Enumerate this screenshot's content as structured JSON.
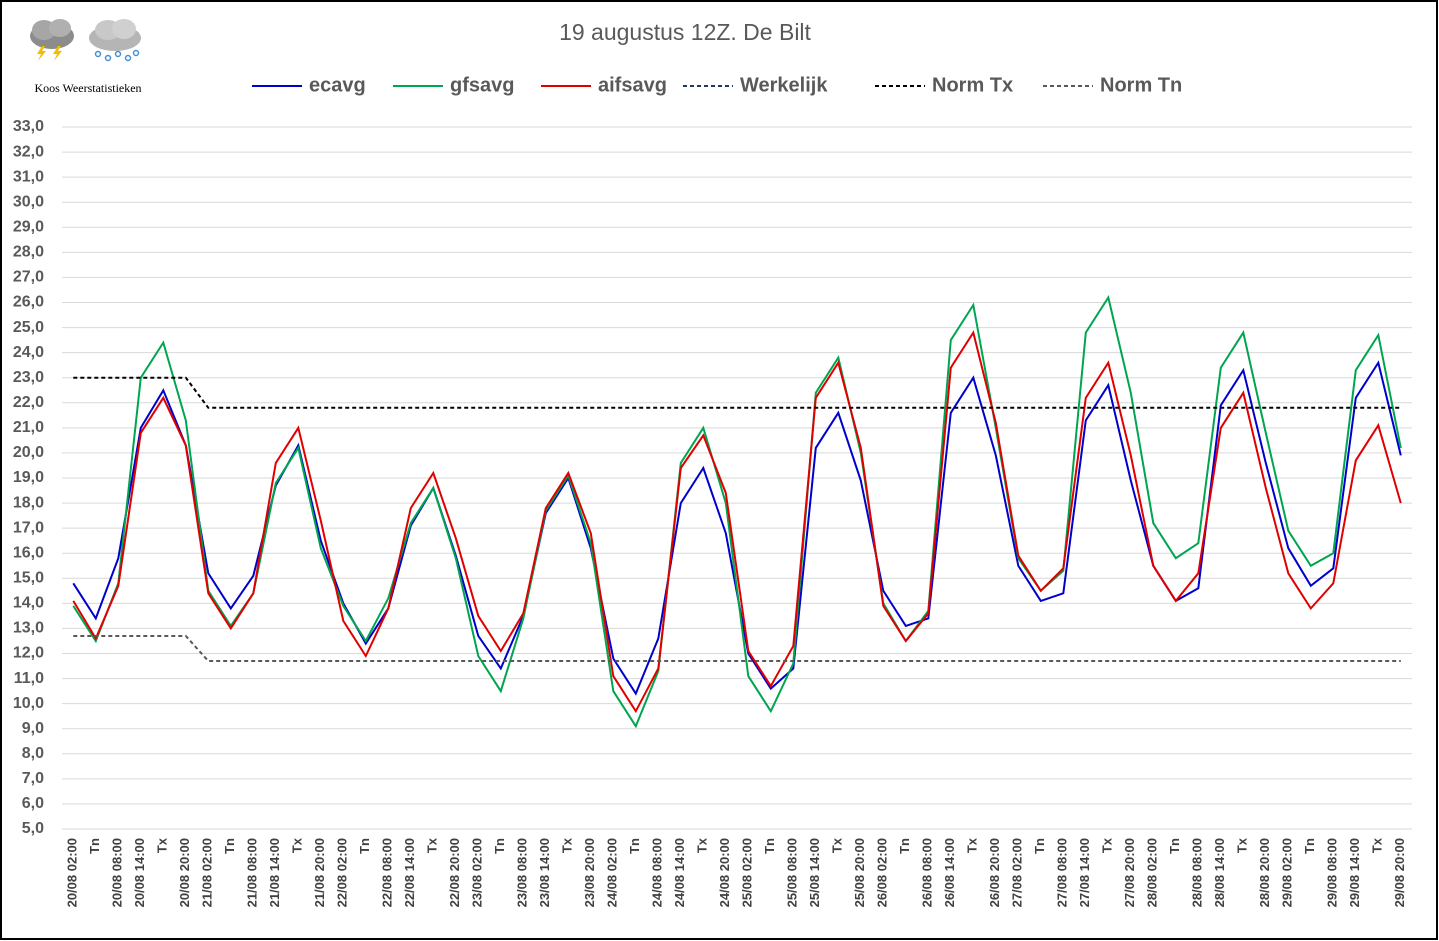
{
  "chart_data": {
    "type": "line",
    "title": "19 augustus 12Z. De Bilt",
    "subtitle": "Koos Weerstatistieken",
    "categories": [
      "20/08 02:00",
      "Tn",
      "20/08 08:00",
      "20/08 14:00",
      "Tx",
      "20/08 20:00",
      "21/08 02:00",
      "Tn",
      "21/08 08:00",
      "21/08 14:00",
      "Tx",
      "21/08 20:00",
      "22/08 02:00",
      "Tn",
      "22/08 08:00",
      "22/08 14:00",
      "Tx",
      "22/08 20:00",
      "23/08 02:00",
      "Tn",
      "23/08 08:00",
      "23/08 14:00",
      "Tx",
      "23/08 20:00",
      "24/08 02:00",
      "Tn",
      "24/08 08:00",
      "24/08 14:00",
      "Tx",
      "24/08 20:00",
      "25/08 02:00",
      "Tn",
      "25/08 08:00",
      "25/08 14:00",
      "Tx",
      "25/08 20:00",
      "26/08 02:00",
      "Tn",
      "26/08 08:00",
      "26/08 14:00",
      "Tx",
      "26/08 20:00",
      "27/08 02:00",
      "Tn",
      "27/08 08:00",
      "27/08 14:00",
      "Tx",
      "27/08 20:00",
      "28/08 02:00",
      "Tn",
      "28/08 08:00",
      "28/08 14:00",
      "Tx",
      "28/08 20:00",
      "29/08 02:00",
      "Tn",
      "29/08 08:00",
      "29/08 14:00",
      "Tx",
      "29/08 20:00"
    ],
    "series": [
      {
        "name": "ecavg",
        "color": "#0000cc",
        "dashed": false,
        "values": [
          14.8,
          13.4,
          15.8,
          21.0,
          22.5,
          20.3,
          15.2,
          13.8,
          15.1,
          18.7,
          20.3,
          16.5,
          14.0,
          12.4,
          13.8,
          17.1,
          18.6,
          15.9,
          12.7,
          11.4,
          13.5,
          17.6,
          19.0,
          16.2,
          11.8,
          10.4,
          12.6,
          18.0,
          19.4,
          16.8,
          12.0,
          10.6,
          11.4,
          20.2,
          21.6,
          18.9,
          14.5,
          13.1,
          13.4,
          21.6,
          23.0,
          19.9,
          15.5,
          14.1,
          14.4,
          21.3,
          22.7,
          18.9,
          15.5,
          14.1,
          14.6,
          21.9,
          23.3,
          19.6,
          16.2,
          14.7,
          15.4,
          22.2,
          23.6,
          19.9
        ]
      },
      {
        "name": "gfsavg",
        "color": "#00a550",
        "dashed": false,
        "values": [
          13.9,
          12.5,
          14.8,
          23.0,
          24.4,
          21.3,
          14.5,
          13.1,
          14.4,
          18.8,
          20.2,
          16.2,
          13.9,
          12.5,
          14.2,
          17.2,
          18.6,
          15.8,
          11.9,
          10.5,
          13.4,
          17.7,
          19.1,
          16.4,
          10.5,
          9.1,
          11.3,
          19.6,
          21.0,
          18.0,
          11.1,
          9.7,
          11.6,
          22.4,
          23.8,
          20.0,
          14.0,
          12.5,
          13.7,
          24.5,
          25.9,
          21.0,
          15.8,
          14.5,
          15.3,
          24.8,
          26.2,
          22.4,
          17.2,
          15.8,
          16.4,
          23.4,
          24.8,
          20.8,
          16.9,
          15.5,
          16.0,
          23.3,
          24.7,
          20.2
        ]
      },
      {
        "name": "aifsavg",
        "color": "#e00000",
        "dashed": false,
        "values": [
          14.1,
          12.6,
          14.7,
          20.8,
          22.2,
          20.3,
          14.4,
          13.0,
          14.4,
          19.6,
          21.0,
          17.3,
          13.3,
          11.9,
          13.8,
          17.8,
          19.2,
          16.6,
          13.5,
          12.1,
          13.6,
          17.8,
          19.2,
          16.8,
          11.1,
          9.7,
          11.4,
          19.4,
          20.7,
          18.4,
          12.1,
          10.7,
          12.3,
          22.2,
          23.6,
          20.2,
          13.9,
          12.5,
          13.6,
          23.4,
          24.8,
          21.2,
          15.9,
          14.5,
          15.4,
          22.2,
          23.6,
          19.9,
          15.5,
          14.1,
          15.2,
          21.0,
          22.4,
          18.6,
          15.2,
          13.8,
          14.8,
          19.7,
          21.1,
          18.0
        ]
      },
      {
        "name": "Werkelijk",
        "color": "#1f3864",
        "dashed": true,
        "values": [
          null,
          null,
          null,
          null,
          null,
          null,
          null,
          null,
          null,
          null,
          null,
          null,
          null,
          null,
          null,
          null,
          null,
          null,
          null,
          null,
          null,
          null,
          null,
          null,
          null,
          null,
          null,
          null,
          null,
          null,
          null,
          null,
          null,
          null,
          null,
          null,
          null,
          null,
          null,
          null,
          null,
          null,
          null,
          null,
          null,
          null,
          null,
          null,
          null,
          null,
          null,
          null,
          null,
          null,
          null,
          null,
          null,
          null,
          null,
          null
        ]
      },
      {
        "name": "Norm Tx",
        "color": "#000000",
        "dashed": true,
        "values": [
          23.0,
          23.0,
          23.0,
          23.0,
          23.0,
          23.0,
          21.8,
          21.8,
          21.8,
          21.8,
          21.8,
          21.8,
          21.8,
          21.8,
          21.8,
          21.8,
          21.8,
          21.8,
          21.8,
          21.8,
          21.8,
          21.8,
          21.8,
          21.8,
          21.8,
          21.8,
          21.8,
          21.8,
          21.8,
          21.8,
          21.8,
          21.8,
          21.8,
          21.8,
          21.8,
          21.8,
          21.8,
          21.8,
          21.8,
          21.8,
          21.8,
          21.8,
          21.8,
          21.8,
          21.8,
          21.8,
          21.8,
          21.8,
          21.8,
          21.8,
          21.8,
          21.8,
          21.8,
          21.8,
          21.8,
          21.8,
          21.8,
          21.8,
          21.8,
          21.8
        ]
      },
      {
        "name": "Norm Tn",
        "color": "#595959",
        "dashed": true,
        "values": [
          12.7,
          12.7,
          12.7,
          12.7,
          12.7,
          12.7,
          11.7,
          11.7,
          11.7,
          11.7,
          11.7,
          11.7,
          11.7,
          11.7,
          11.7,
          11.7,
          11.7,
          11.7,
          11.7,
          11.7,
          11.7,
          11.7,
          11.7,
          11.7,
          11.7,
          11.7,
          11.7,
          11.7,
          11.7,
          11.7,
          11.7,
          11.7,
          11.7,
          11.7,
          11.7,
          11.7,
          11.7,
          11.7,
          11.7,
          11.7,
          11.7,
          11.7,
          11.7,
          11.7,
          11.7,
          11.7,
          11.7,
          11.7,
          11.7,
          11.7,
          11.7,
          11.7,
          11.7,
          11.7,
          11.7,
          11.7,
          11.7,
          11.7,
          11.7,
          11.7
        ]
      }
    ],
    "ylim": [
      5,
      33
    ],
    "yticks": [
      {
        "value": 5,
        "label": "5,0"
      },
      {
        "value": 6,
        "label": "6,0"
      },
      {
        "value": 7,
        "label": "7,0"
      },
      {
        "value": 8,
        "label": "8,0"
      },
      {
        "value": 9,
        "label": "9,0"
      },
      {
        "value": 10,
        "label": "10,0"
      },
      {
        "value": 11,
        "label": "11,0"
      },
      {
        "value": 12,
        "label": "12,0"
      },
      {
        "value": 13,
        "label": "13,0"
      },
      {
        "value": 14,
        "label": "14,0"
      },
      {
        "value": 15,
        "label": "15,0"
      },
      {
        "value": 16,
        "label": "16,0"
      },
      {
        "value": 17,
        "label": "17,0"
      },
      {
        "value": 18,
        "label": "18,0"
      },
      {
        "value": 19,
        "label": "19,0"
      },
      {
        "value": 20,
        "label": "20,0"
      },
      {
        "value": 21,
        "label": "21,0"
      },
      {
        "value": 22,
        "label": "22,0"
      },
      {
        "value": 23,
        "label": "23,0"
      },
      {
        "value": 24,
        "label": "24,0"
      },
      {
        "value": 25,
        "label": "25,0"
      },
      {
        "value": 26,
        "label": "26,0"
      },
      {
        "value": 27,
        "label": "27,0"
      },
      {
        "value": 28,
        "label": "28,0"
      },
      {
        "value": 29,
        "label": "29,0"
      },
      {
        "value": 30,
        "label": "30,0"
      },
      {
        "value": 31,
        "label": "31,0"
      },
      {
        "value": 32,
        "label": "32,0"
      },
      {
        "value": 33,
        "label": "33,0"
      }
    ],
    "grid": true,
    "legend": "top"
  }
}
